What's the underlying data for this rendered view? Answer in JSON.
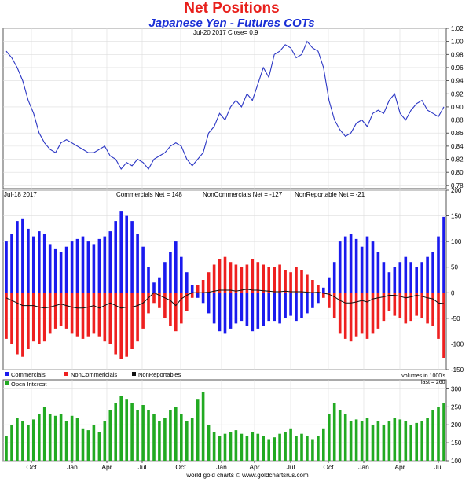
{
  "title": "Net Positions",
  "subtitle": "Japanese Yen - Futures COTs",
  "colors": {
    "title": "#e8201c",
    "subtitle": "#1a2fd6",
    "price_line": "#2b36c4",
    "commercials": "#1a1aee",
    "noncommercials": "#ee2020",
    "nonreportables": "#111111",
    "open_interest": "#22aa22",
    "grid": "#dddddd"
  },
  "footer": "world gold charts © www.goldchartsrus.com",
  "chart_data": [
    {
      "id": "price",
      "type": "line",
      "info": "Jul-20  2017   Close= 0.9",
      "ylim": [
        0.775,
        1.02
      ],
      "yticks": [
        0.78,
        0.8,
        0.82,
        0.84,
        0.86,
        0.88,
        0.9,
        0.92,
        0.94,
        0.96,
        0.98,
        1.0,
        1.02
      ],
      "xticks": [
        "Oct",
        "Jan",
        "Apr",
        "Jul",
        "Oct",
        "Jan",
        "Apr",
        "Jul",
        "Oct",
        "Jan",
        "Apr",
        "Jul"
      ],
      "grid": true,
      "x": [
        0,
        2,
        4,
        6,
        8,
        10,
        12,
        14,
        16,
        18,
        20,
        22,
        24,
        26,
        28,
        30,
        32,
        34,
        36,
        38,
        40,
        42,
        44,
        46,
        48,
        50,
        52,
        54,
        56,
        58,
        60,
        62,
        64,
        66,
        68,
        70,
        72,
        74,
        76,
        78,
        80,
        82,
        84,
        86,
        88,
        90,
        92,
        94,
        96,
        98,
        100,
        102,
        104,
        106,
        108,
        110,
        112,
        114,
        116,
        118,
        120,
        122,
        124,
        126,
        128,
        130,
        132,
        134,
        136,
        138,
        140,
        142,
        144,
        146,
        148,
        150,
        152,
        154,
        156,
        158,
        160
      ],
      "y": [
        0.985,
        0.975,
        0.96,
        0.94,
        0.91,
        0.89,
        0.86,
        0.845,
        0.835,
        0.83,
        0.845,
        0.85,
        0.845,
        0.84,
        0.835,
        0.83,
        0.83,
        0.835,
        0.84,
        0.825,
        0.82,
        0.805,
        0.815,
        0.81,
        0.82,
        0.815,
        0.805,
        0.82,
        0.825,
        0.83,
        0.84,
        0.845,
        0.84,
        0.82,
        0.81,
        0.82,
        0.83,
        0.86,
        0.87,
        0.89,
        0.88,
        0.9,
        0.91,
        0.9,
        0.92,
        0.91,
        0.935,
        0.96,
        0.945,
        0.98,
        0.985,
        0.995,
        0.99,
        0.975,
        0.98,
        1.0,
        0.99,
        0.985,
        0.96,
        0.91,
        0.88,
        0.865,
        0.855,
        0.86,
        0.875,
        0.88,
        0.87,
        0.89,
        0.895,
        0.89,
        0.91,
        0.92,
        0.89,
        0.88,
        0.895,
        0.905,
        0.91,
        0.895,
        0.89,
        0.885,
        0.9
      ]
    },
    {
      "id": "net_positions",
      "type": "bar",
      "date_label": "Jul-18  2017",
      "header": [
        "Commercials Net = 148",
        "NonCommercials Net = -127",
        "NonReportable Net = -21"
      ],
      "ylim": [
        -150,
        200
      ],
      "yticks": [
        -150,
        -100,
        -50,
        0,
        50,
        100,
        150,
        200
      ],
      "grid": true,
      "legend": [
        "Commercials",
        "NonCommericials",
        "NonReportables"
      ],
      "note": "volumes in 1000's",
      "x": [
        0,
        2,
        4,
        6,
        8,
        10,
        12,
        14,
        16,
        18,
        20,
        22,
        24,
        26,
        28,
        30,
        32,
        34,
        36,
        38,
        40,
        42,
        44,
        46,
        48,
        50,
        52,
        54,
        56,
        58,
        60,
        62,
        64,
        66,
        68,
        70,
        72,
        74,
        76,
        78,
        80,
        82,
        84,
        86,
        88,
        90,
        92,
        94,
        96,
        98,
        100,
        102,
        104,
        106,
        108,
        110,
        112,
        114,
        116,
        118,
        120,
        122,
        124,
        126,
        128,
        130,
        132,
        134,
        136,
        138,
        140,
        142,
        144,
        146,
        148,
        150,
        152,
        154,
        156,
        158,
        160
      ],
      "series": [
        {
          "name": "Commercials",
          "values": [
            100,
            115,
            140,
            145,
            125,
            110,
            120,
            115,
            95,
            85,
            80,
            90,
            100,
            105,
            110,
            100,
            95,
            105,
            110,
            120,
            140,
            160,
            150,
            140,
            115,
            90,
            50,
            20,
            30,
            60,
            80,
            100,
            70,
            40,
            15,
            -10,
            -20,
            -40,
            -60,
            -75,
            -80,
            -70,
            -60,
            -55,
            -65,
            -75,
            -70,
            -65,
            -55,
            -55,
            -60,
            -50,
            -45,
            -55,
            -50,
            -40,
            -30,
            -20,
            10,
            30,
            60,
            100,
            110,
            115,
            105,
            90,
            110,
            100,
            80,
            60,
            40,
            50,
            60,
            70,
            60,
            50,
            60,
            70,
            80,
            110,
            148
          ]
        },
        {
          "name": "NonCommericials",
          "values": [
            -90,
            -100,
            -120,
            -125,
            -110,
            -95,
            -100,
            -95,
            -80,
            -70,
            -65,
            -70,
            -80,
            -85,
            -90,
            -85,
            -80,
            -85,
            -95,
            -100,
            -120,
            -130,
            -125,
            -110,
            -95,
            -70,
            -40,
            -20,
            -30,
            -50,
            -65,
            -75,
            -60,
            -35,
            -10,
            15,
            25,
            40,
            55,
            65,
            70,
            60,
            55,
            50,
            55,
            65,
            60,
            55,
            50,
            50,
            55,
            45,
            40,
            50,
            45,
            35,
            25,
            15,
            -10,
            -30,
            -50,
            -80,
            -90,
            -95,
            -85,
            -80,
            -90,
            -80,
            -70,
            -55,
            -35,
            -45,
            -50,
            -60,
            -55,
            -45,
            -50,
            -60,
            -65,
            -90,
            -127
          ]
        },
        {
          "name": "NonReportables",
          "values": [
            -10,
            -15,
            -20,
            -25,
            -25,
            -25,
            -28,
            -30,
            -28,
            -25,
            -22,
            -25,
            -28,
            -30,
            -30,
            -28,
            -25,
            -30,
            -25,
            -20,
            -25,
            -30,
            -28,
            -28,
            -25,
            -20,
            -10,
            0,
            -5,
            -10,
            -15,
            -25,
            -12,
            -5,
            0,
            0,
            0,
            1,
            3,
            5,
            5,
            5,
            3,
            5,
            7,
            5,
            5,
            4,
            3,
            2,
            2,
            3,
            2,
            2,
            2,
            1,
            0,
            1,
            -1,
            -3,
            -8,
            -15,
            -20,
            -20,
            -18,
            -15,
            -18,
            -12,
            -10,
            -8,
            -5,
            -5,
            -7,
            -10,
            -8,
            -5,
            -7,
            -10,
            -12,
            -20,
            -21
          ]
        }
      ]
    },
    {
      "id": "open_interest",
      "type": "bar",
      "legend": [
        "Open Interest"
      ],
      "info": "last = 260",
      "ylim": [
        100,
        325
      ],
      "yticks": [
        100,
        150,
        200,
        250,
        300
      ],
      "grid": true,
      "x": [
        0,
        2,
        4,
        6,
        8,
        10,
        12,
        14,
        16,
        18,
        20,
        22,
        24,
        26,
        28,
        30,
        32,
        34,
        36,
        38,
        40,
        42,
        44,
        46,
        48,
        50,
        52,
        54,
        56,
        58,
        60,
        62,
        64,
        66,
        68,
        70,
        72,
        74,
        76,
        78,
        80,
        82,
        84,
        86,
        88,
        90,
        92,
        94,
        96,
        98,
        100,
        102,
        104,
        106,
        108,
        110,
        112,
        114,
        116,
        118,
        120,
        122,
        124,
        126,
        128,
        130,
        132,
        134,
        136,
        138,
        140,
        142,
        144,
        146,
        148,
        150,
        152,
        154,
        156,
        158,
        160
      ],
      "values": [
        170,
        200,
        220,
        210,
        200,
        215,
        230,
        250,
        230,
        225,
        230,
        210,
        225,
        220,
        190,
        185,
        200,
        180,
        210,
        240,
        260,
        280,
        270,
        260,
        240,
        255,
        240,
        230,
        210,
        220,
        240,
        250,
        230,
        210,
        220,
        270,
        290,
        200,
        180,
        170,
        175,
        180,
        185,
        175,
        170,
        180,
        175,
        170,
        160,
        165,
        175,
        180,
        190,
        170,
        175,
        170,
        160,
        170,
        190,
        230,
        260,
        240,
        230,
        210,
        215,
        210,
        220,
        200,
        210,
        200,
        210,
        220,
        215,
        210,
        200,
        205,
        210,
        220,
        240,
        250,
        260
      ]
    }
  ]
}
